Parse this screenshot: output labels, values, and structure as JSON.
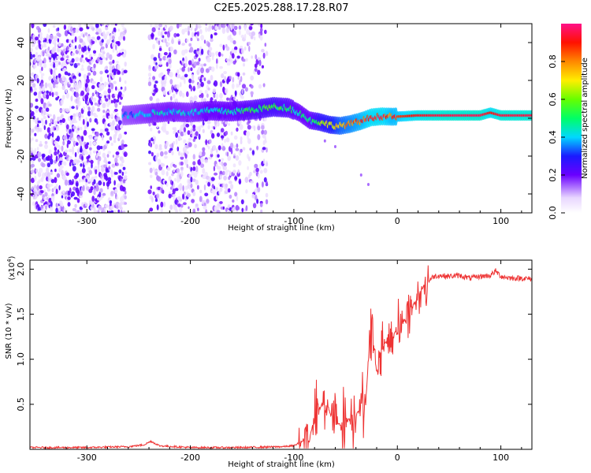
{
  "title": "C2E5.2025.288.17.28.R07",
  "chart_data": [
    {
      "type": "heatmap",
      "panel": "spectrogram",
      "xlabel": "Height of straight line (km)",
      "ylabel": "Frequency (Hz)",
      "xlim": [
        -355,
        130
      ],
      "ylim": [
        -50,
        50
      ],
      "xticks": [
        -300,
        -200,
        -100,
        0,
        100
      ],
      "yticks": [
        -40,
        -20,
        0,
        20,
        40
      ],
      "colorbar": {
        "label": "Normalized spectral amplitude",
        "ticks": [
          "0.0",
          "0.2",
          "0.4",
          "0.6",
          "0.8"
        ],
        "tick_values": [
          0.0,
          0.2,
          0.4,
          0.6,
          0.8
        ],
        "range": [
          0,
          1
        ]
      },
      "ridge": {
        "height_km": [
          -262,
          -240,
          -220,
          -200,
          -180,
          -160,
          -140,
          -120,
          -105,
          -95,
          -85,
          -75,
          -65,
          -55,
          -45,
          -35,
          -25,
          -15,
          -5,
          5,
          20,
          40,
          60,
          80,
          90,
          100,
          130
        ],
        "frequency_hz": [
          1.5,
          2.5,
          3.5,
          3.0,
          4.0,
          3.5,
          4.5,
          6.0,
          5.5,
          3.0,
          -1.0,
          -2.0,
          -3.5,
          -4.0,
          -3.0,
          -1.5,
          0.5,
          1.0,
          0.8,
          1.0,
          1.5,
          1.5,
          1.5,
          1.5,
          3.0,
          1.5,
          1.5
        ],
        "amplitude": [
          0.35,
          0.4,
          0.42,
          0.4,
          0.45,
          0.45,
          0.5,
          0.55,
          0.5,
          0.45,
          0.45,
          0.6,
          0.65,
          0.75,
          0.8,
          0.85,
          0.9,
          0.9,
          0.85,
          0.88,
          0.92,
          0.95,
          0.96,
          0.96,
          0.9,
          0.95,
          0.95
        ]
      }
    },
    {
      "type": "line",
      "panel": "snr",
      "xlabel": "Height of straight line (km)",
      "ylabel": "SNR (10 * v/v)",
      "y_multiplier_label": "(x10",
      "y_multiplier_exp": "4",
      "y_multiplier_close": ")",
      "xlim": [
        -355,
        130
      ],
      "ylim": [
        0,
        2.1
      ],
      "xticks": [
        -300,
        -200,
        -100,
        0,
        100
      ],
      "yticks": [
        0.5,
        1.0,
        1.5,
        2.0
      ],
      "ytick_labels": [
        "0.5",
        "1.0",
        "1.5",
        "2.0"
      ],
      "series": [
        {
          "name": "SNR",
          "color": "#ee3333",
          "x": [
            -355,
            -300,
            -260,
            -245,
            -238,
            -230,
            -200,
            -150,
            -110,
            -100,
            -90,
            -85,
            -80,
            -75,
            -70,
            -65,
            -60,
            -55,
            -50,
            -45,
            -40,
            -35,
            -30,
            -28,
            -25,
            -20,
            -15,
            -10,
            -5,
            0,
            5,
            10,
            15,
            20,
            25,
            30,
            35,
            40,
            50,
            60,
            70,
            80,
            90,
            95,
            100,
            110,
            120,
            130
          ],
          "y": [
            0.02,
            0.02,
            0.03,
            0.05,
            0.09,
            0.04,
            0.02,
            0.02,
            0.03,
            0.04,
            0.1,
            0.15,
            0.3,
            0.45,
            0.55,
            0.4,
            0.3,
            0.28,
            0.32,
            0.35,
            0.4,
            0.45,
            0.6,
            1.0,
            1.4,
            0.85,
            1.15,
            1.2,
            1.25,
            1.35,
            1.4,
            1.5,
            1.6,
            1.7,
            1.8,
            1.87,
            1.92,
            1.93,
            1.92,
            1.93,
            1.9,
            1.92,
            1.93,
            1.98,
            1.92,
            1.9,
            1.9,
            1.89
          ]
        }
      ]
    }
  ]
}
